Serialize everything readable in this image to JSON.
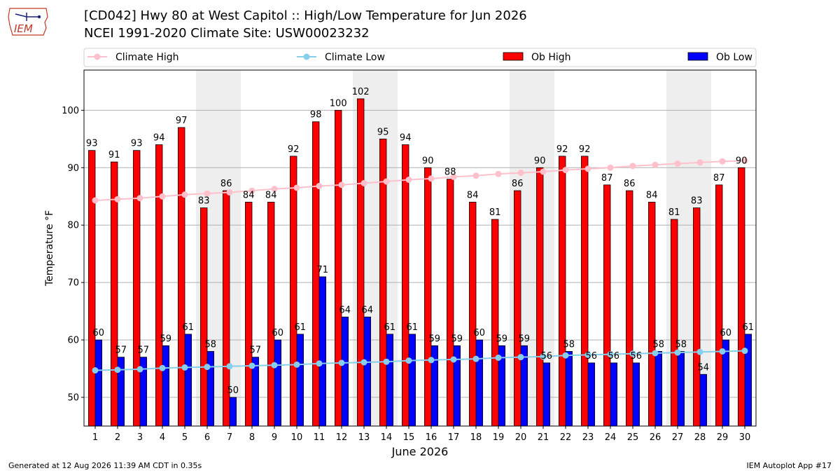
{
  "title": "[CD042] Hwy 80 at West Capitol :: High/Low Temperature for Jun 2026",
  "subtitle": "NCEI 1991-2020 Climate Site: USW00023232",
  "logo_text": "IEM",
  "footer_left": "Generated at 12 Aug 2026 11:39 AM CDT in 0.35s",
  "footer_right": "IEM Autoplot App #17",
  "colors": {
    "ob_high": "#ff0000",
    "ob_low": "#0000ff",
    "climate_high": "#ffc0cb",
    "climate_low": "#87ceeb",
    "weekend_band": "#eeeeee"
  },
  "chart_data": {
    "type": "bar",
    "xlabel": "June 2026",
    "ylabel": "Temperature °F",
    "ylim": [
      45,
      107
    ],
    "yticks": [
      50,
      60,
      70,
      80,
      90,
      100
    ],
    "grid": true,
    "legend_position": "top",
    "shaded_days": [
      6,
      7,
      13,
      14,
      20,
      21,
      27,
      28
    ],
    "categories": [
      "1",
      "2",
      "3",
      "4",
      "5",
      "6",
      "7",
      "8",
      "9",
      "10",
      "11",
      "12",
      "13",
      "14",
      "15",
      "16",
      "17",
      "18",
      "19",
      "20",
      "21",
      "22",
      "23",
      "24",
      "25",
      "26",
      "27",
      "28",
      "29",
      "30"
    ],
    "series": [
      {
        "name": "Ob High",
        "type": "bar",
        "values": [
          93,
          91,
          93,
          94,
          97,
          83,
          86,
          84,
          84,
          92,
          98,
          100,
          102,
          95,
          94,
          90,
          88,
          84,
          81,
          86,
          90,
          92,
          92,
          87,
          86,
          84,
          81,
          83,
          87,
          90
        ]
      },
      {
        "name": "Ob Low",
        "type": "bar",
        "values": [
          60,
          57,
          57,
          59,
          61,
          58,
          50,
          57,
          60,
          61,
          71,
          64,
          64,
          61,
          61,
          59,
          59,
          60,
          59,
          59,
          56,
          58,
          56,
          56,
          56,
          58,
          58,
          54,
          60,
          61
        ]
      },
      {
        "name": "Climate High",
        "type": "line",
        "values": [
          84.3,
          84.5,
          84.7,
          85.0,
          85.3,
          85.5,
          85.7,
          86.0,
          86.3,
          86.5,
          86.8,
          87.0,
          87.3,
          87.6,
          87.9,
          88.1,
          88.4,
          88.6,
          88.9,
          89.1,
          89.3,
          89.6,
          89.8,
          90.0,
          90.3,
          90.5,
          90.7,
          90.9,
          91.1,
          91.2
        ]
      },
      {
        "name": "Climate Low",
        "type": "line",
        "values": [
          54.7,
          54.8,
          54.9,
          55.1,
          55.2,
          55.3,
          55.4,
          55.5,
          55.6,
          55.7,
          55.9,
          56.0,
          56.1,
          56.2,
          56.4,
          56.5,
          56.6,
          56.7,
          56.9,
          57.0,
          57.1,
          57.3,
          57.4,
          57.5,
          57.6,
          57.7,
          57.8,
          57.9,
          58.0,
          58.1
        ]
      }
    ]
  }
}
